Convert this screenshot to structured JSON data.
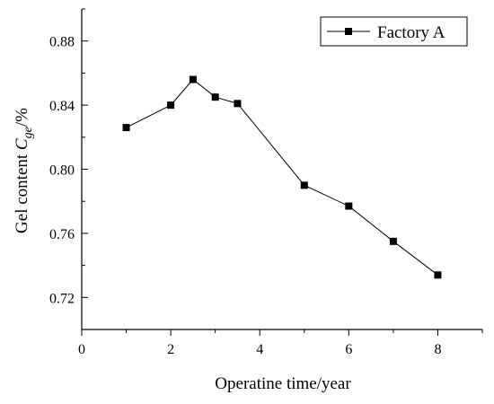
{
  "chart_data": {
    "type": "line",
    "xlabel": "Operatine time/year",
    "ylabel": {
      "prefix": "Gel content ",
      "symbol": "C",
      "subscript": "ge",
      "suffix": "/%"
    },
    "xlim": [
      0,
      9
    ],
    "ylim": [
      0.7,
      0.9
    ],
    "xticks": [
      "0",
      "2",
      "4",
      "6",
      "8"
    ],
    "yticks": [
      "0.72",
      "0.76",
      "0.80",
      "0.84",
      "0.88"
    ],
    "grid": false,
    "legend_position": "top-right",
    "series": [
      {
        "name": "Factory A",
        "marker": "square",
        "color": "#000000",
        "x": [
          1,
          2,
          2.5,
          3,
          3.5,
          5,
          6,
          7,
          8
        ],
        "y": [
          0.826,
          0.84,
          0.856,
          0.845,
          0.841,
          0.79,
          0.777,
          0.755,
          0.734
        ]
      }
    ]
  }
}
